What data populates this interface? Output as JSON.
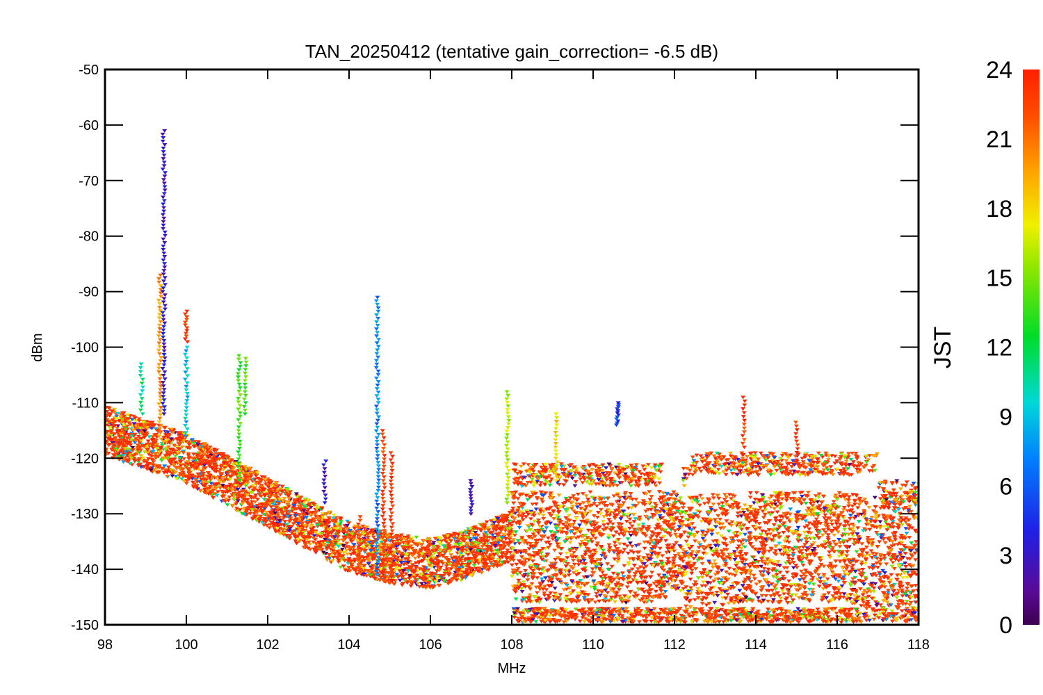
{
  "chart_data": {
    "type": "scatter",
    "title": "TAN_20250412 (tentative gain_correction= -6.5 dB)",
    "xlabel": "MHz",
    "ylabel": "dBm",
    "xlim": [
      98,
      118
    ],
    "ylim": [
      -150,
      -50
    ],
    "x_ticks": [
      "98",
      "100",
      "102",
      "104",
      "106",
      "108",
      "110",
      "112",
      "114",
      "116",
      "118"
    ],
    "y_ticks": [
      "-50",
      "-60",
      "-70",
      "-80",
      "-90",
      "-100",
      "-110",
      "-120",
      "-130",
      "-140",
      "-150"
    ],
    "grid": false,
    "colorbar": {
      "label": "JST",
      "range": [
        0,
        24
      ],
      "ticks": [
        "0",
        "3",
        "6",
        "9",
        "12",
        "15",
        "18",
        "21",
        "24"
      ],
      "colormap": "rainbow (purple-blue-cyan-green-yellow-orange-red)"
    },
    "noise_floor": [
      {
        "x": 98,
        "y": -115
      },
      {
        "x": 100,
        "y": -120
      },
      {
        "x": 102,
        "y": -128
      },
      {
        "x": 104,
        "y": -136
      },
      {
        "x": 105,
        "y": -138
      },
      {
        "x": 106,
        "y": -139
      },
      {
        "x": 107,
        "y": -137
      },
      {
        "x": 108,
        "y": -134
      },
      {
        "x": 108.05,
        "y": -136
      },
      {
        "x": 110,
        "y": -136
      },
      {
        "x": 111.8,
        "y": -136
      },
      {
        "x": 112,
        "y": -137
      },
      {
        "x": 114,
        "y": -136
      },
      {
        "x": 116,
        "y": -136
      },
      {
        "x": 117,
        "y": -137
      },
      {
        "x": 118,
        "y": -137
      }
    ],
    "peaks": [
      {
        "x": 98.9,
        "y_max": -103,
        "y_min": -112,
        "jst": 11
      },
      {
        "x": 99.35,
        "y_max": -87,
        "y_min": -116,
        "jst": 20
      },
      {
        "x": 99.45,
        "y_max": -61,
        "y_min": -112,
        "jst": 3
      },
      {
        "x": 100.0,
        "y_max": -93.5,
        "y_min": -99,
        "jst": 23
      },
      {
        "x": 100.0,
        "y_max": -100,
        "y_min": -116,
        "jst": 9
      },
      {
        "x": 101.3,
        "y_max": -101.5,
        "y_min": -124,
        "jst": 14
      },
      {
        "x": 101.45,
        "y_max": -102,
        "y_min": -112,
        "jst": 14
      },
      {
        "x": 103.4,
        "y_max": -120.5,
        "y_min": -128,
        "jst": 3
      },
      {
        "x": 104.25,
        "y_max": -130.5,
        "y_min": -140,
        "jst": 22
      },
      {
        "x": 104.7,
        "y_max": -91,
        "y_min": -141,
        "jst": 7
      },
      {
        "x": 104.85,
        "y_max": -115,
        "y_min": -142,
        "jst": 23
      },
      {
        "x": 105.05,
        "y_max": -119,
        "y_min": -142,
        "jst": 23
      },
      {
        "x": 107.0,
        "y_max": -124,
        "y_min": -130,
        "jst": 3
      },
      {
        "x": 107.9,
        "y_max": -108,
        "y_min": -128,
        "jst": 16
      },
      {
        "x": 109.1,
        "y_max": -112,
        "y_min": -124,
        "jst": 18
      },
      {
        "x": 110.6,
        "y_max": -110,
        "y_min": -114,
        "jst": 5
      },
      {
        "x": 113.7,
        "y_max": -109,
        "y_min": -118,
        "jst": 23
      },
      {
        "x": 115.0,
        "y_max": -113.5,
        "y_min": -121,
        "jst": 23
      }
    ]
  }
}
